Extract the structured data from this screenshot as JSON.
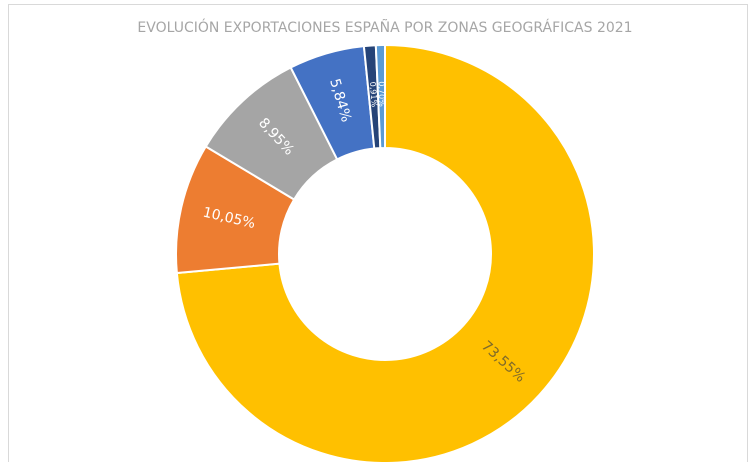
{
  "chart_data": {
    "type": "donut",
    "title": "EVOLUCIÓN EXPORTACIONES ESPAÑA POR ZONAS GEOGRÁFICAS 2021",
    "values": [
      73.55,
      10.05,
      8.95,
      5.84,
      0.91,
      0.7
    ],
    "value_labels": [
      "73,55%",
      "10,05%",
      "8,95%",
      "5,84%",
      "0,91%",
      "0,70%"
    ],
    "colors": [
      "#ffc000",
      "#ed7d31",
      "#a5a5a5",
      "#4472c4",
      "#264478",
      "#5b9bd5"
    ],
    "label_colors": [
      "#7f6a2a",
      "#ffffff",
      "#ffffff",
      "#ffffff",
      "#ffffff",
      "#ffffff"
    ]
  }
}
